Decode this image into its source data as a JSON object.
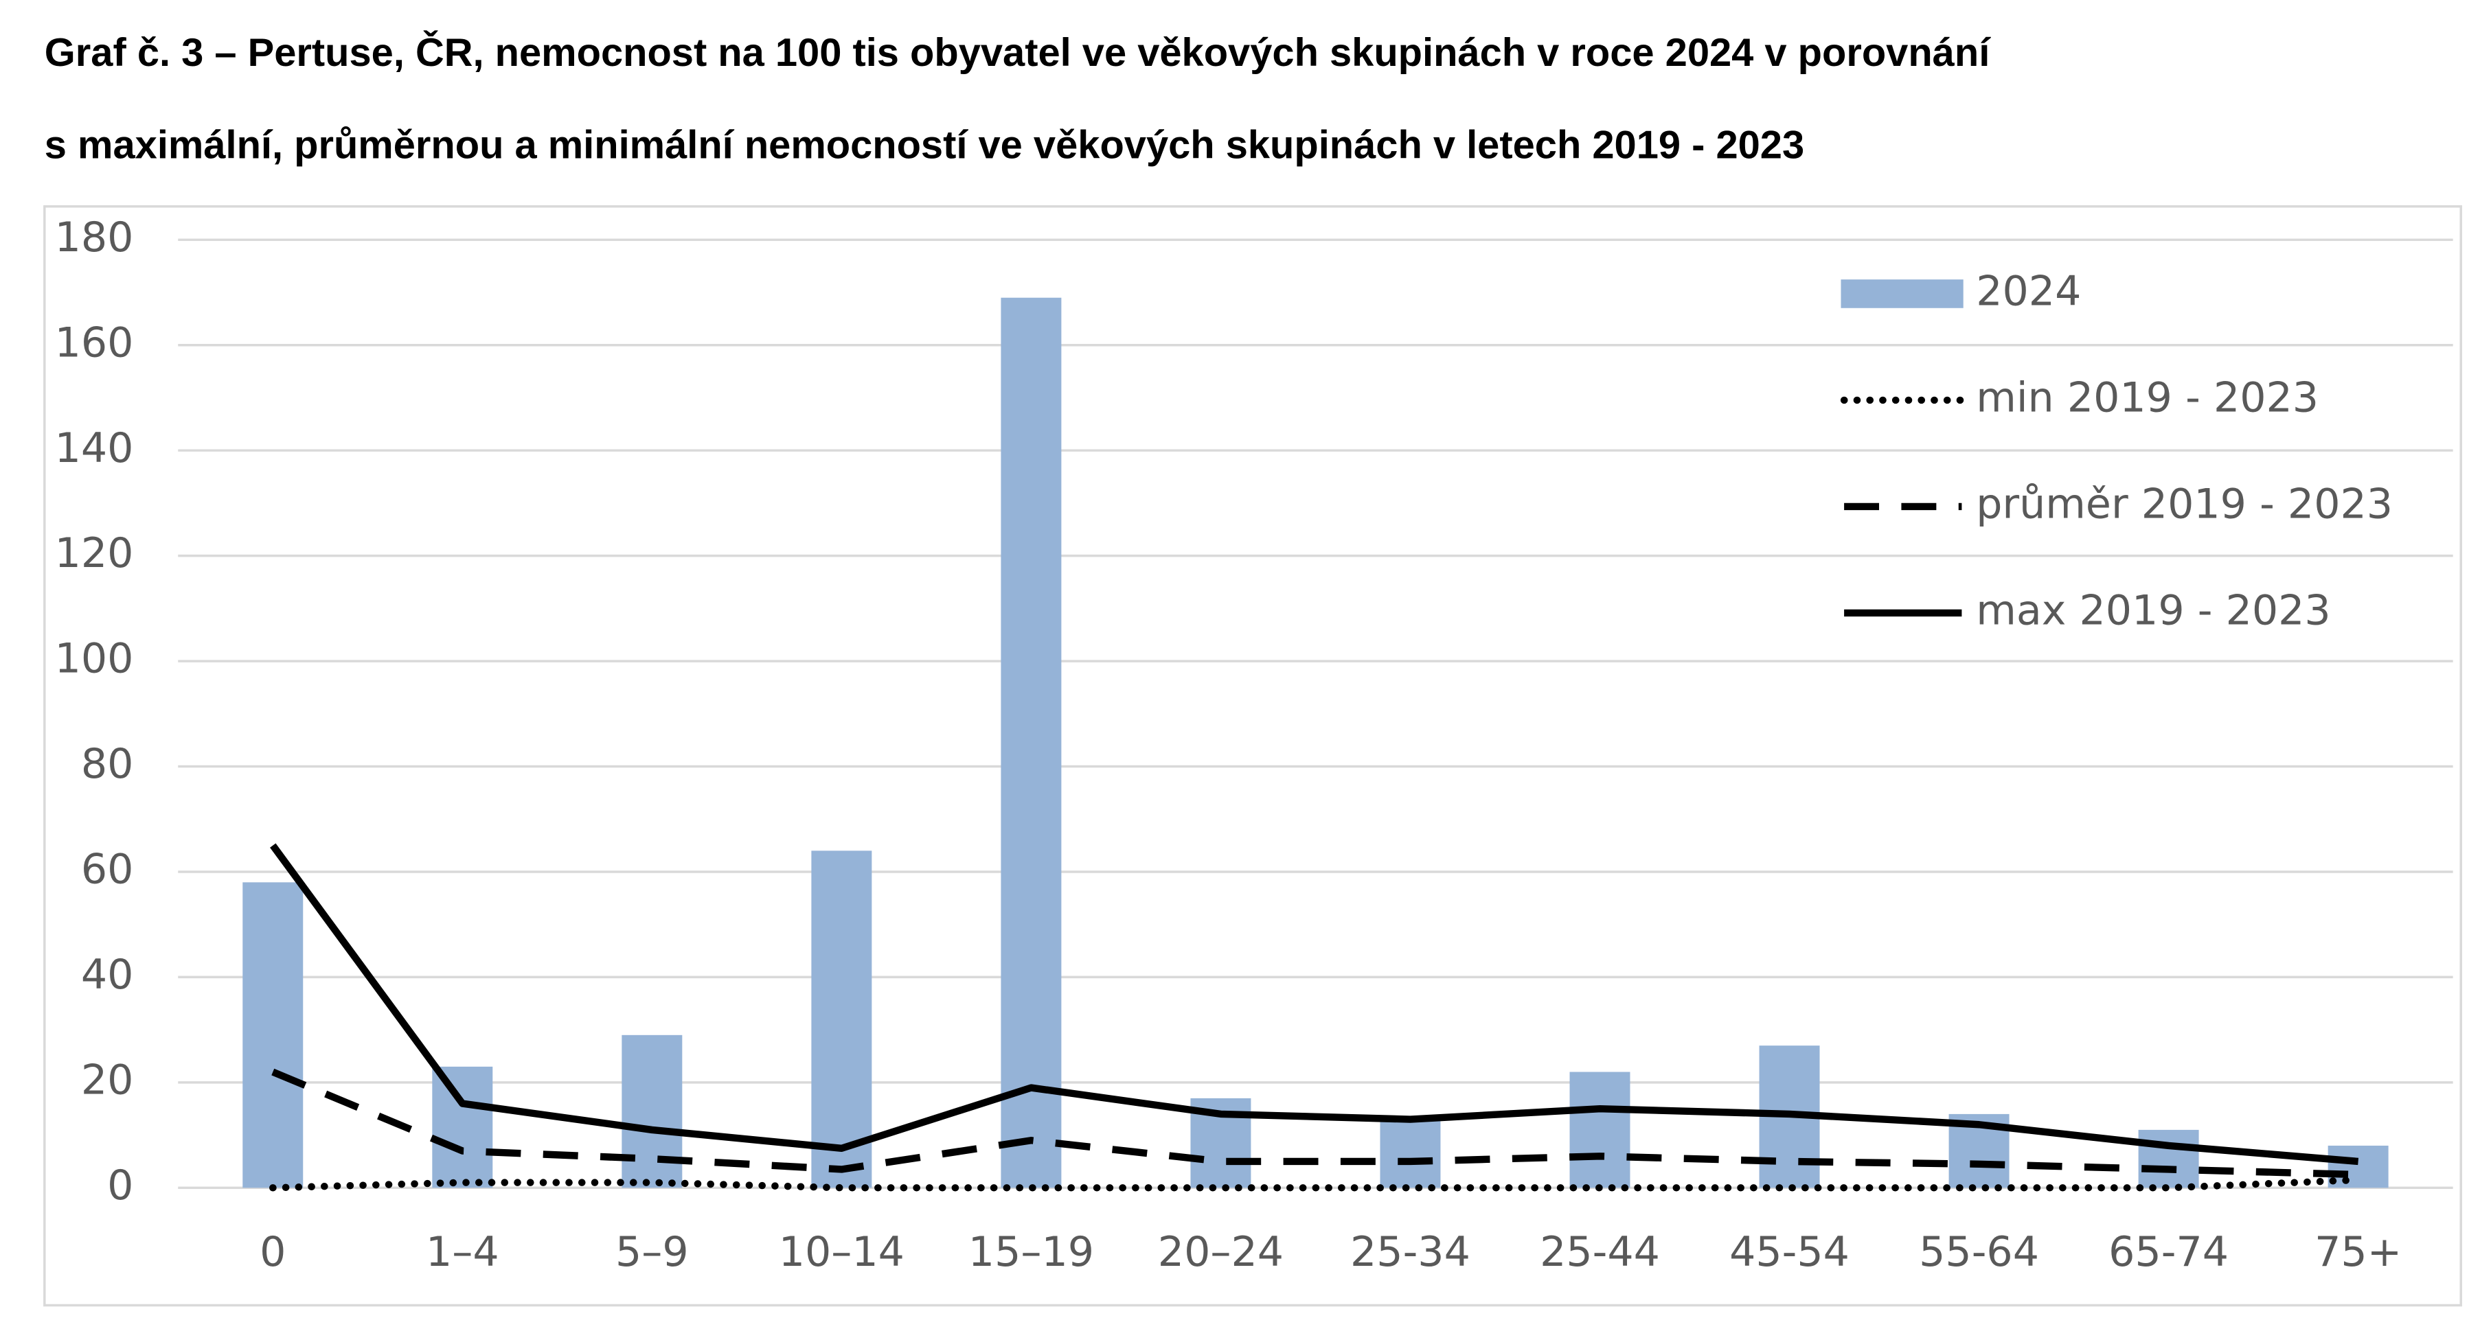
{
  "chart_data": {
    "type": "bar",
    "title": [
      "Graf č. 3 – Pertuse, ČR, nemocnost na 100 tis obyvatel ve věkových skupinách v roce 2024 v porovnání",
      "s maximální, průměrnou a minimální nemocností ve věkových skupinách v  letech 2019 - 2023"
    ],
    "categories": [
      "0",
      "1–4",
      "5–9",
      "10–14",
      "15–19",
      "20–24",
      "25-34",
      "25-44",
      "45-54",
      "55-64",
      "65-74",
      "75+"
    ],
    "series": [
      {
        "name": "2024",
        "type": "bar",
        "color": "#95b3d7",
        "values": [
          58,
          23,
          29,
          64,
          169,
          17,
          13,
          22,
          27,
          14,
          11,
          8
        ]
      },
      {
        "name": "min 2019 - 2023",
        "type": "line",
        "style": "dotted",
        "color": "#000000",
        "values": [
          0,
          1,
          1,
          0,
          0,
          0,
          0,
          0,
          0,
          0,
          0,
          1.5
        ]
      },
      {
        "name": "průměr 2019 - 2023",
        "type": "line",
        "style": "dashed",
        "color": "#000000",
        "values": [
          22,
          7,
          5.5,
          3.5,
          9,
          5,
          5,
          6,
          5,
          4.5,
          3.5,
          2.5
        ]
      },
      {
        "name": "max 2019 - 2023",
        "type": "line",
        "style": "solid",
        "color": "#000000",
        "values": [
          65,
          16,
          11,
          7.5,
          19,
          14,
          13,
          15,
          14,
          12,
          8,
          5
        ]
      }
    ],
    "ylim": [
      0,
      180
    ],
    "yticks": [
      0,
      20,
      40,
      60,
      80,
      100,
      120,
      140,
      160,
      180
    ],
    "grid": true,
    "legend": "top-right"
  }
}
